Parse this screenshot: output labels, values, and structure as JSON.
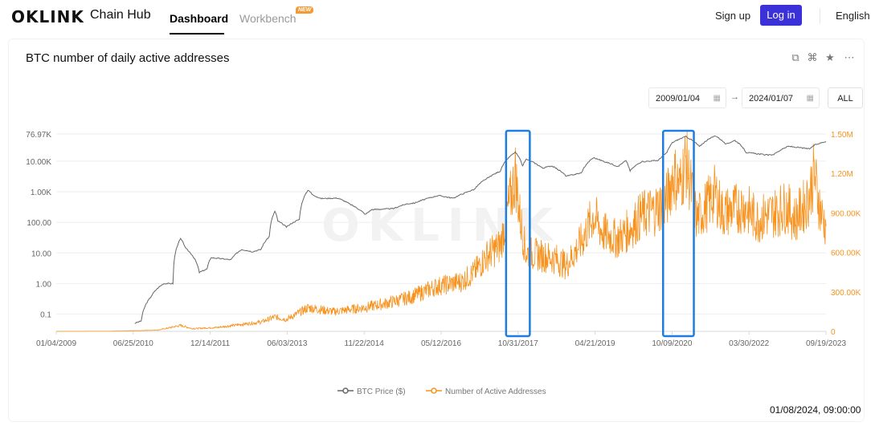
{
  "nav": {
    "logo": "OKLINK",
    "product": "Chain Hub",
    "tabs": [
      {
        "label": "Dashboard"
      },
      {
        "label": "Workbench",
        "badge": "NEW"
      }
    ],
    "signup": "Sign up",
    "login": "Log in",
    "language": "English"
  },
  "toolbar": {
    "start_date": "2009/01/04",
    "end_date": "2024/01/07",
    "all_label": "ALL",
    "icons": [
      "share-icon",
      "embed-icon",
      "star-icon",
      "more-icon"
    ]
  },
  "timestamp": "01/08/2024, 09:00:00",
  "colors": {
    "price": "#666666",
    "addresses": "#f7921e",
    "highlight": "#1f7de0",
    "accent": "#3a31d8"
  },
  "chart_data": {
    "type": "line",
    "title": "BTC number of daily active addresses",
    "x_tick_labels": [
      "01/04/2009",
      "06/25/2010",
      "12/14/2011",
      "06/03/2013",
      "11/22/2014",
      "05/12/2016",
      "10/31/2017",
      "04/21/2019",
      "10/09/2020",
      "03/30/2022",
      "09/19/2023"
    ],
    "x_range": [
      "2009-01-04",
      "2024-01-07"
    ],
    "y_left": {
      "scale": "log",
      "tick_labels": [
        "0.1",
        "1.00",
        "10.00",
        "100.00",
        "1.00K",
        "10.00K",
        "76.97K"
      ],
      "tick_values": [
        0.1,
        1,
        10,
        100,
        1000,
        10000,
        76970
      ]
    },
    "y_right": {
      "scale": "linear",
      "tick_labels": [
        "0",
        "300.00K",
        "600.00K",
        "900.00K",
        "1.20M",
        "1.50M"
      ],
      "tick_values": [
        0,
        300000,
        600000,
        900000,
        1200000,
        1500000
      ]
    },
    "legend": {
      "position": "bottom-center",
      "entries": [
        "BTC Price ($)",
        "Number of Active Addresses"
      ]
    },
    "series": [
      {
        "name": "BTC Price ($)",
        "axis": "left",
        "points": [
          [
            "2010-07-17",
            0.05
          ],
          [
            "2010-09-01",
            0.06
          ],
          [
            "2010-11-06",
            0.35
          ],
          [
            "2011-02-09",
            1.0
          ],
          [
            "2011-04-15",
            1.0
          ],
          [
            "2011-06-08",
            29
          ],
          [
            "2011-07-15",
            14
          ],
          [
            "2011-10-20",
            2.3
          ],
          [
            "2011-12-14",
            3.0
          ],
          [
            "2012-01-10",
            7
          ],
          [
            "2012-06-01",
            6
          ],
          [
            "2012-08-16",
            13
          ],
          [
            "2012-11-01",
            11
          ],
          [
            "2013-01-01",
            13
          ],
          [
            "2013-03-01",
            34
          ],
          [
            "2013-04-10",
            230
          ],
          [
            "2013-05-01",
            110
          ],
          [
            "2013-07-01",
            70
          ],
          [
            "2013-10-01",
            125
          ],
          [
            "2013-12-04",
            1150
          ],
          [
            "2014-01-01",
            800
          ],
          [
            "2014-03-01",
            600
          ],
          [
            "2014-07-01",
            620
          ],
          [
            "2014-10-01",
            380
          ],
          [
            "2015-01-14",
            180
          ],
          [
            "2015-03-01",
            260
          ],
          [
            "2015-08-01",
            280
          ],
          [
            "2015-11-04",
            400
          ],
          [
            "2016-01-01",
            430
          ],
          [
            "2016-06-17",
            750
          ],
          [
            "2016-10-01",
            610
          ],
          [
            "2017-01-01",
            950
          ],
          [
            "2017-03-01",
            1200
          ],
          [
            "2017-06-12",
            2950
          ],
          [
            "2017-09-01",
            4700
          ],
          [
            "2017-12-17",
            19500
          ],
          [
            "2018-02-06",
            6900
          ],
          [
            "2018-03-05",
            11500
          ],
          [
            "2018-06-29",
            5900
          ],
          [
            "2018-09-01",
            7000
          ],
          [
            "2018-12-15",
            3200
          ],
          [
            "2019-04-01",
            4100
          ],
          [
            "2019-06-26",
            12900
          ],
          [
            "2019-09-01",
            10000
          ],
          [
            "2019-12-18",
            6600
          ],
          [
            "2020-02-12",
            10300
          ],
          [
            "2020-03-13",
            4800
          ],
          [
            "2020-06-01",
            9500
          ],
          [
            "2020-10-01",
            10600
          ],
          [
            "2020-12-01",
            19000
          ],
          [
            "2021-01-08",
            40000
          ],
          [
            "2021-04-14",
            63500
          ],
          [
            "2021-07-20",
            29800
          ],
          [
            "2021-11-10",
            67600
          ],
          [
            "2022-01-24",
            35000
          ],
          [
            "2022-03-29",
            47500
          ],
          [
            "2022-06-18",
            19000
          ],
          [
            "2022-11-21",
            15700
          ],
          [
            "2023-01-01",
            16600
          ],
          [
            "2023-04-14",
            30400
          ],
          [
            "2023-09-11",
            25000
          ],
          [
            "2023-10-24",
            34500
          ],
          [
            "2024-01-07",
            44000
          ]
        ]
      },
      {
        "name": "Number of Active Addresses",
        "axis": "right",
        "points": [
          [
            "2009-01-04",
            0
          ],
          [
            "2010-01-01",
            500
          ],
          [
            "2010-08-01",
            5000
          ],
          [
            "2011-01-01",
            10000
          ],
          [
            "2011-06-08",
            45000
          ],
          [
            "2011-09-01",
            20000
          ],
          [
            "2012-03-01",
            30000
          ],
          [
            "2012-09-01",
            55000
          ],
          [
            "2013-01-01",
            70000
          ],
          [
            "2013-04-10",
            110000
          ],
          [
            "2013-07-01",
            90000
          ],
          [
            "2013-12-04",
            180000
          ],
          [
            "2014-06-01",
            150000
          ],
          [
            "2015-01-01",
            180000
          ],
          [
            "2015-06-01",
            210000
          ],
          [
            "2015-12-01",
            260000
          ],
          [
            "2016-06-01",
            340000
          ],
          [
            "2016-12-01",
            380000
          ],
          [
            "2017-03-01",
            450000
          ],
          [
            "2017-06-01",
            580000
          ],
          [
            "2017-09-01",
            650000
          ],
          [
            "2017-12-01",
            1100000
          ],
          [
            "2017-12-17",
            1200000
          ],
          [
            "2018-01-15",
            900000
          ],
          [
            "2018-03-01",
            600000
          ],
          [
            "2018-06-01",
            580000
          ],
          [
            "2018-10-01",
            550000
          ],
          [
            "2018-12-15",
            500000
          ],
          [
            "2019-04-01",
            680000
          ],
          [
            "2019-06-26",
            880000
          ],
          [
            "2019-09-01",
            750000
          ],
          [
            "2019-12-15",
            700000
          ],
          [
            "2020-03-13",
            780000
          ],
          [
            "2020-06-01",
            880000
          ],
          [
            "2020-09-01",
            920000
          ],
          [
            "2020-12-01",
            1000000
          ],
          [
            "2021-01-15",
            1200000
          ],
          [
            "2021-03-01",
            1100000
          ],
          [
            "2021-04-14",
            1300000
          ],
          [
            "2021-07-01",
            850000
          ],
          [
            "2021-11-10",
            1050000
          ],
          [
            "2022-01-01",
            900000
          ],
          [
            "2022-06-01",
            950000
          ],
          [
            "2022-09-01",
            850000
          ],
          [
            "2023-01-01",
            900000
          ],
          [
            "2023-04-01",
            950000
          ],
          [
            "2023-06-01",
            850000
          ],
          [
            "2023-09-01",
            1000000
          ],
          [
            "2023-10-15",
            1200000
          ],
          [
            "2023-12-01",
            900000
          ],
          [
            "2024-01-07",
            800000
          ]
        ]
      }
    ],
    "annotations": [
      {
        "type": "highlight-box",
        "x": [
          "2017-10-12",
          "2018-03-30"
        ]
      },
      {
        "type": "highlight-box",
        "x": [
          "2020-11-03",
          "2021-06-10"
        ]
      }
    ]
  }
}
